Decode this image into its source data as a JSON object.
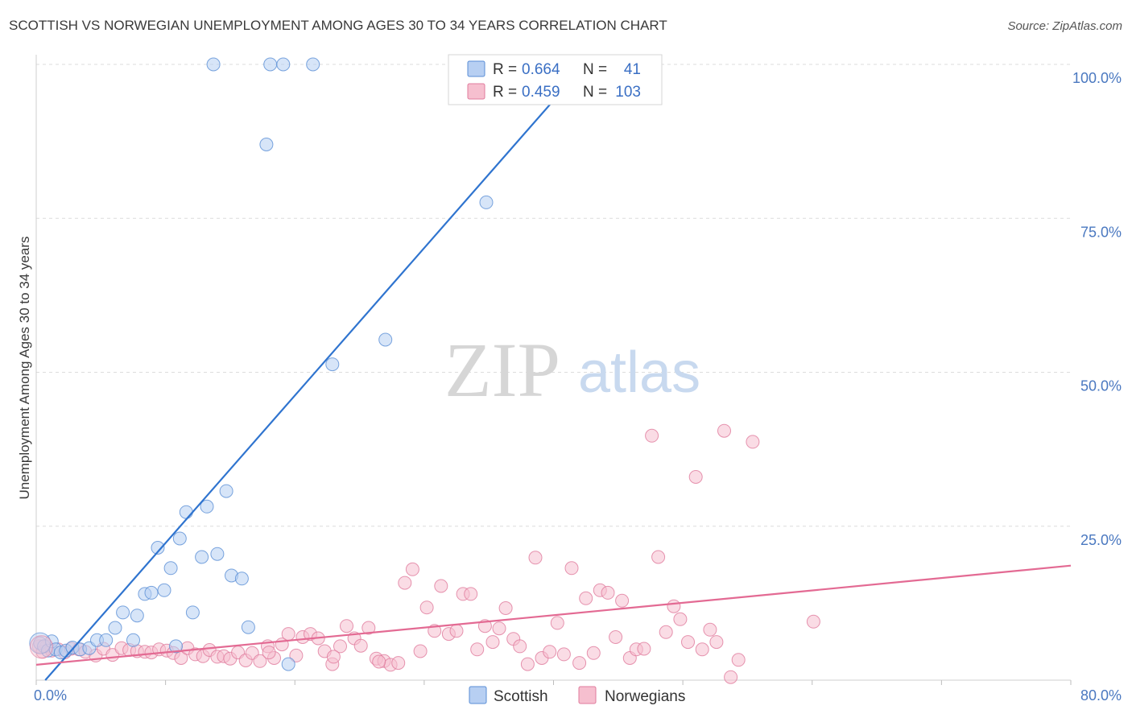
{
  "title": "SCOTTISH VS NORWEGIAN UNEMPLOYMENT AMONG AGES 30 TO 34 YEARS CORRELATION CHART",
  "source": "Source: ZipAtlas.com",
  "watermark": {
    "zip": "ZIP",
    "atlas": "atlas"
  },
  "colors": {
    "scottish_fill": "#b7cff2",
    "scottish_stroke": "#5a8ed6",
    "scottish_line": "#2f74cf",
    "norwegian_fill": "#f6bfcf",
    "norwegian_stroke": "#e07b9c",
    "norwegian_line": "#e36a93"
  },
  "legend": {
    "rows": [
      {
        "r_label": "R = ",
        "r_value": "0.664",
        "n_label": "N = ",
        "n_value": "41"
      },
      {
        "r_label": "R = ",
        "r_value": "0.459",
        "n_label": "N = ",
        "n_value": "103"
      }
    ]
  },
  "chart_data": {
    "type": "scatter",
    "title": "SCOTTISH VS NORWEGIAN UNEMPLOYMENT AMONG AGES 30 TO 34 YEARS CORRELATION CHART",
    "xlabel": "",
    "ylabel": "Unemployment Among Ages 30 to 34 years",
    "xlim": [
      0,
      80
    ],
    "ylim": [
      0,
      100
    ],
    "x_tick_labels": [
      "0.0%",
      "80.0%"
    ],
    "y_ticks": [
      25,
      50,
      75,
      100
    ],
    "y_tick_labels": [
      "25.0%",
      "50.0%",
      "75.0%",
      "100.0%"
    ],
    "grid": true,
    "legend_position": "top-center",
    "series": [
      {
        "name": "Scottish",
        "r": 0.664,
        "n": 41,
        "trend": {
          "x0": 0.7,
          "y0": 0,
          "x1": 39.9,
          "y1": 93.9
        },
        "points": [
          [
            0.3,
            6.0
          ],
          [
            0.6,
            5.5
          ],
          [
            0.9,
            4.8
          ],
          [
            1.2,
            6.3
          ],
          [
            1.5,
            5.0
          ],
          [
            1.9,
            4.5
          ],
          [
            2.3,
            4.8
          ],
          [
            2.8,
            5.3
          ],
          [
            3.4,
            5.0
          ],
          [
            4.1,
            5.2
          ],
          [
            4.7,
            6.5
          ],
          [
            5.4,
            6.5
          ],
          [
            6.1,
            8.5
          ],
          [
            6.7,
            11.0
          ],
          [
            7.5,
            6.5
          ],
          [
            7.8,
            10.5
          ],
          [
            8.4,
            14.0
          ],
          [
            8.9,
            14.2
          ],
          [
            9.4,
            21.5
          ],
          [
            9.9,
            14.6
          ],
          [
            10.4,
            18.2
          ],
          [
            10.8,
            5.5
          ],
          [
            11.1,
            23.0
          ],
          [
            11.6,
            27.3
          ],
          [
            12.1,
            11.0
          ],
          [
            12.8,
            20.0
          ],
          [
            13.2,
            28.2
          ],
          [
            14.0,
            20.5
          ],
          [
            14.7,
            30.7
          ],
          [
            15.1,
            17.0
          ],
          [
            15.9,
            16.5
          ],
          [
            16.4,
            8.6
          ],
          [
            17.8,
            87.0
          ],
          [
            18.1,
            100.0
          ],
          [
            19.1,
            100.0
          ],
          [
            19.5,
            2.6
          ],
          [
            21.4,
            100.0
          ],
          [
            22.9,
            51.3
          ],
          [
            27.0,
            55.3
          ],
          [
            34.8,
            77.6
          ],
          [
            13.7,
            100.0
          ]
        ]
      },
      {
        "name": "Norwegians",
        "r": 0.459,
        "n": 103,
        "trend": {
          "x0": 0,
          "y0": 2.5,
          "x1": 80,
          "y1": 18.6
        },
        "points": [
          [
            0.2,
            5.5
          ],
          [
            0.5,
            4.6
          ],
          [
            0.8,
            5.5
          ],
          [
            1.2,
            4.8
          ],
          [
            1.7,
            5.0
          ],
          [
            2.2,
            4.5
          ],
          [
            2.7,
            5.1
          ],
          [
            3.3,
            5.0
          ],
          [
            3.8,
            4.6
          ],
          [
            4.6,
            4.0
          ],
          [
            5.2,
            5.1
          ],
          [
            5.9,
            4.1
          ],
          [
            6.6,
            5.2
          ],
          [
            7.2,
            4.9
          ],
          [
            7.8,
            4.7
          ],
          [
            8.4,
            4.6
          ],
          [
            8.9,
            4.5
          ],
          [
            9.5,
            5.0
          ],
          [
            10.1,
            4.8
          ],
          [
            10.6,
            4.4
          ],
          [
            11.2,
            3.6
          ],
          [
            11.7,
            5.2
          ],
          [
            12.3,
            4.2
          ],
          [
            12.9,
            3.9
          ],
          [
            13.4,
            4.9
          ],
          [
            14.0,
            3.8
          ],
          [
            14.5,
            3.9
          ],
          [
            15.0,
            3.5
          ],
          [
            15.6,
            4.5
          ],
          [
            16.2,
            3.2
          ],
          [
            16.7,
            4.4
          ],
          [
            17.3,
            3.1
          ],
          [
            17.9,
            5.5
          ],
          [
            18.4,
            3.6
          ],
          [
            19.0,
            5.8
          ],
          [
            19.5,
            7.5
          ],
          [
            20.1,
            4.0
          ],
          [
            20.6,
            7.0
          ],
          [
            21.2,
            7.5
          ],
          [
            21.8,
            6.8
          ],
          [
            22.3,
            4.7
          ],
          [
            22.9,
            2.6
          ],
          [
            23.5,
            5.5
          ],
          [
            24.0,
            8.8
          ],
          [
            24.6,
            6.8
          ],
          [
            25.1,
            5.6
          ],
          [
            25.7,
            8.5
          ],
          [
            26.3,
            3.5
          ],
          [
            26.9,
            3.1
          ],
          [
            27.4,
            2.5
          ],
          [
            28.0,
            2.8
          ],
          [
            28.5,
            15.8
          ],
          [
            29.1,
            18.0
          ],
          [
            29.7,
            4.7
          ],
          [
            30.2,
            11.8
          ],
          [
            30.8,
            8.0
          ],
          [
            31.3,
            15.3
          ],
          [
            31.9,
            7.5
          ],
          [
            32.5,
            8.0
          ],
          [
            33.0,
            14.0
          ],
          [
            33.6,
            14.0
          ],
          [
            34.1,
            5.0
          ],
          [
            34.7,
            8.8
          ],
          [
            35.3,
            6.2
          ],
          [
            35.8,
            8.4
          ],
          [
            36.3,
            11.7
          ],
          [
            36.9,
            6.7
          ],
          [
            37.4,
            5.5
          ],
          [
            38.0,
            2.6
          ],
          [
            38.6,
            19.9
          ],
          [
            39.1,
            3.6
          ],
          [
            39.7,
            4.6
          ],
          [
            40.3,
            9.3
          ],
          [
            40.8,
            4.2
          ],
          [
            41.4,
            18.2
          ],
          [
            42.0,
            2.8
          ],
          [
            42.5,
            13.3
          ],
          [
            43.1,
            4.4
          ],
          [
            43.6,
            14.6
          ],
          [
            44.2,
            14.2
          ],
          [
            44.8,
            7.0
          ],
          [
            45.3,
            12.9
          ],
          [
            45.9,
            3.6
          ],
          [
            46.4,
            5.0
          ],
          [
            47.0,
            5.1
          ],
          [
            47.6,
            39.7
          ],
          [
            48.1,
            20.0
          ],
          [
            48.7,
            7.8
          ],
          [
            49.3,
            12.0
          ],
          [
            49.8,
            9.9
          ],
          [
            50.4,
            6.2
          ],
          [
            51.0,
            33.0
          ],
          [
            51.5,
            5.0
          ],
          [
            52.1,
            8.2
          ],
          [
            52.6,
            6.2
          ],
          [
            53.2,
            40.5
          ],
          [
            53.7,
            0.5
          ],
          [
            54.3,
            3.3
          ],
          [
            55.4,
            38.7
          ],
          [
            60.1,
            9.5
          ],
          [
            18.0,
            4.5
          ],
          [
            23.0,
            3.8
          ],
          [
            26.5,
            3.0
          ]
        ]
      }
    ]
  },
  "bottom_legend": {
    "items": [
      "Scottish",
      "Norwegians"
    ]
  }
}
